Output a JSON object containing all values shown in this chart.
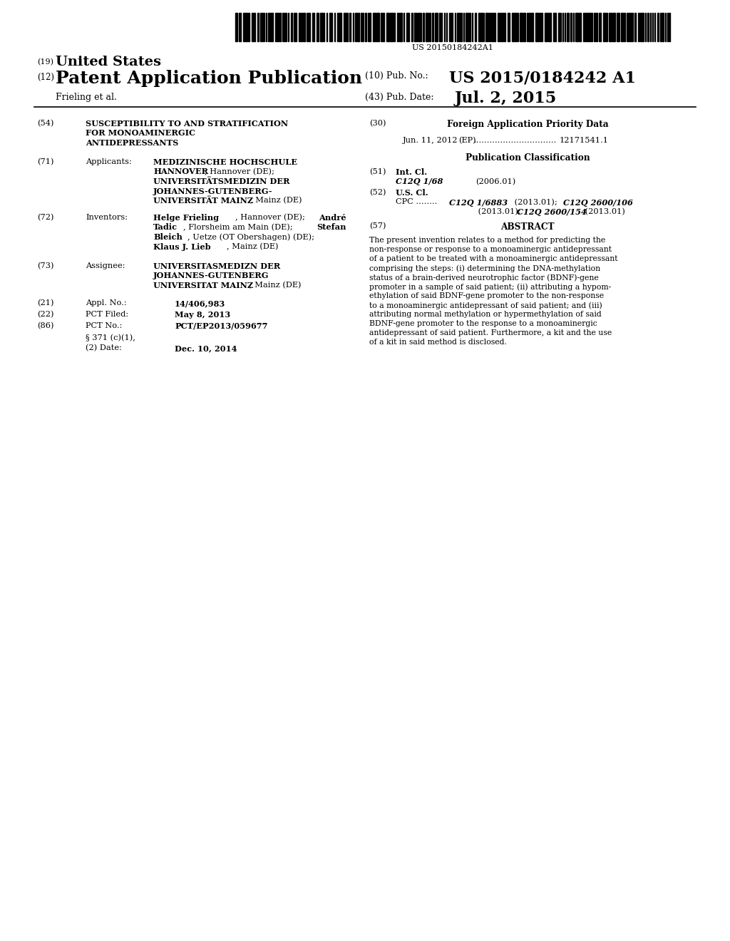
{
  "background_color": "#ffffff",
  "barcode_text": "US 20150184242A1",
  "header_19_label": "(19)",
  "header_19_text": "United States",
  "header_12_label": "(12)",
  "header_12_text": "Patent Application Publication",
  "header_10_label": "(10) Pub. No.:",
  "header_10_value": "US 2015/0184242 A1",
  "header_43_label": "(43) Pub. Date:",
  "header_43_value": "Jul. 2, 2015",
  "author_line": "Frieling et al.",
  "field_54_label": "(54)",
  "field_54_line1": "SUSCEPTIBILITY TO AND STRATIFICATION",
  "field_54_line2": "FOR MONOAMINERGIC",
  "field_54_line3": "ANTIDEPRESSANTS",
  "field_71_label": "(71)",
  "field_71_prefix": "Applicants:",
  "field_72_label": "(72)",
  "field_72_prefix": "Inventors:",
  "field_73_label": "(73)",
  "field_73_prefix": "Assignee:",
  "field_21_label": "(21)",
  "field_21_key": "Appl. No.:",
  "field_21_value": "14/406,983",
  "field_22_label": "(22)",
  "field_22_key": "PCT Filed:",
  "field_22_value": "May 8, 2013",
  "field_86_label": "(86)",
  "field_86_key": "PCT No.:",
  "field_86_value": "PCT/EP2013/059677",
  "field_86b_key1": "§ 371 (c)(1),",
  "field_86b_key2": "(2) Date:",
  "field_86b_value": "Dec. 10, 2014",
  "field_30_label": "(30)",
  "field_30_title": "Foreign Application Priority Data",
  "field_30_entry_date": "Jun. 11, 2012",
  "field_30_entry_ep": "(EP)",
  "field_30_entry_dots": "...............................",
  "field_30_entry_num": "12171541.1",
  "pub_class_title": "Publication Classification",
  "field_51_label": "(51)",
  "field_51_key": "Int. Cl.",
  "field_51_italic": "C12Q 1/68",
  "field_51_year": "(2006.01)",
  "field_52_label": "(52)",
  "field_52_key": "U.S. Cl.",
  "field_52_cpc_prefix": "CPC ........",
  "field_52_italic1": "C12Q 1/6883",
  "field_52_text1": " (2013.01); ",
  "field_52_italic2": "C12Q 2600/106",
  "field_52_text2": " (2013.01); ",
  "field_52_italic3": "C12Q 2600/154",
  "field_52_text3": " (2013.01)",
  "field_57_label": "(57)",
  "field_57_title": "ABSTRACT",
  "abstract_lines": [
    "The present invention relates to a method for predicting the",
    "non-response or response to a monoaminergic antidepressant",
    "of a patient to be treated with a monoaminergic antidepressant",
    "comprising the steps: (i) determining the DNA-methylation",
    "status of a brain-derived neurotrophic factor (BDNF)-gene",
    "promoter in a sample of said patient; (ii) attributing a hypom-",
    "ethylation of said BDNF-gene promoter to the non-response",
    "to a monoaminergic antidepressant of said patient; and (iii)",
    "attributing normal methylation or hypermethylation of said",
    "BDNF-gene promoter to the response to a monoaminergic",
    "antidepressant of said patient. Furthermore, a kit and the use",
    "of a kit in said method is disclosed."
  ]
}
